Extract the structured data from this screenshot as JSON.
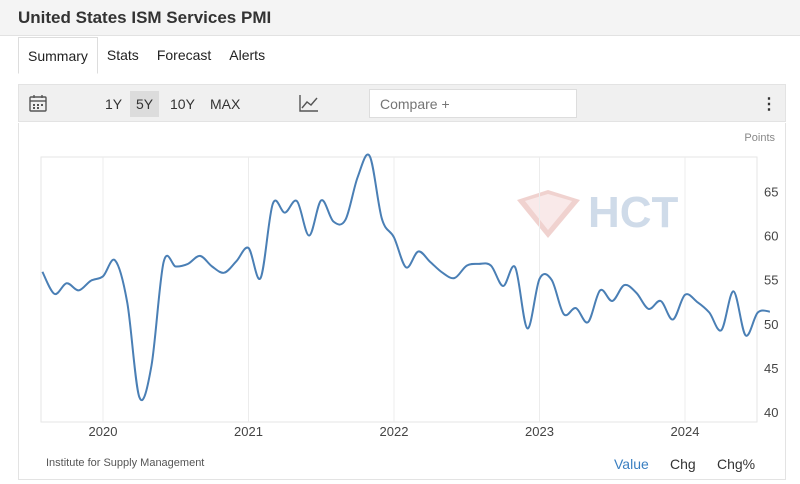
{
  "header": {
    "title": "United States ISM Services PMI"
  },
  "tabs": [
    {
      "label": "Summary"
    },
    {
      "label": "Stats"
    },
    {
      "label": "Forecast"
    },
    {
      "label": "Alerts"
    }
  ],
  "toolbar": {
    "ranges": [
      "1Y",
      "5Y",
      "10Y",
      "MAX"
    ],
    "active_range": "5Y",
    "compare_placeholder": "Compare +"
  },
  "watermark": {
    "text": "HCT"
  },
  "footer": {
    "source": "Institute for Supply Management",
    "modes": [
      "Value",
      "Chg",
      "Chg%"
    ],
    "active_mode": "Value"
  },
  "colors": {
    "line": "#4a7fb5",
    "accent": "#3a7fc1"
  },
  "chart_data": {
    "type": "line",
    "unit_label": "Points",
    "x_tick_labels": [
      "2020",
      "2021",
      "2022",
      "2023",
      "2024"
    ],
    "ylim": [
      39,
      69
    ],
    "y_ticks": [
      40,
      45,
      50,
      55,
      60,
      65
    ],
    "grid": "vertical",
    "series": [
      {
        "x": [
          "2019-08",
          "2019-09",
          "2019-10",
          "2019-11",
          "2019-12",
          "2020-01",
          "2020-02",
          "2020-03",
          "2020-04",
          "2020-05",
          "2020-06",
          "2020-07",
          "2020-08",
          "2020-09",
          "2020-10",
          "2020-11",
          "2020-12",
          "2021-01",
          "2021-02",
          "2021-03",
          "2021-04",
          "2021-05",
          "2021-06",
          "2021-07",
          "2021-08",
          "2021-09",
          "2021-10",
          "2021-11",
          "2021-12",
          "2022-01",
          "2022-02",
          "2022-03",
          "2022-04",
          "2022-05",
          "2022-06",
          "2022-07",
          "2022-08",
          "2022-09",
          "2022-10",
          "2022-11",
          "2022-12",
          "2023-01",
          "2023-02",
          "2023-03",
          "2023-04",
          "2023-05",
          "2023-06",
          "2023-07",
          "2023-08",
          "2023-09",
          "2023-10",
          "2023-11",
          "2023-12",
          "2024-01",
          "2024-02",
          "2024-03",
          "2024-04",
          "2024-05",
          "2024-06",
          "2024-07",
          "2024-08"
        ],
        "y": [
          56.0,
          53.5,
          54.7,
          53.9,
          55.0,
          55.5,
          57.3,
          52.5,
          41.8,
          45.4,
          57.1,
          56.6,
          56.9,
          57.8,
          56.6,
          55.9,
          57.2,
          58.7,
          55.3,
          63.7,
          62.7,
          64.0,
          60.1,
          64.1,
          61.7,
          61.9,
          66.7,
          69.1,
          62.0,
          59.9,
          56.5,
          58.3,
          57.1,
          55.9,
          55.3,
          56.7,
          56.9,
          56.7,
          54.4,
          56.5,
          49.6,
          55.2,
          55.1,
          51.2,
          51.9,
          50.3,
          53.9,
          52.7,
          54.5,
          53.6,
          51.8,
          52.7,
          50.6,
          53.4,
          52.6,
          51.4,
          49.4,
          53.8,
          48.8,
          51.4,
          51.5
        ]
      }
    ]
  }
}
